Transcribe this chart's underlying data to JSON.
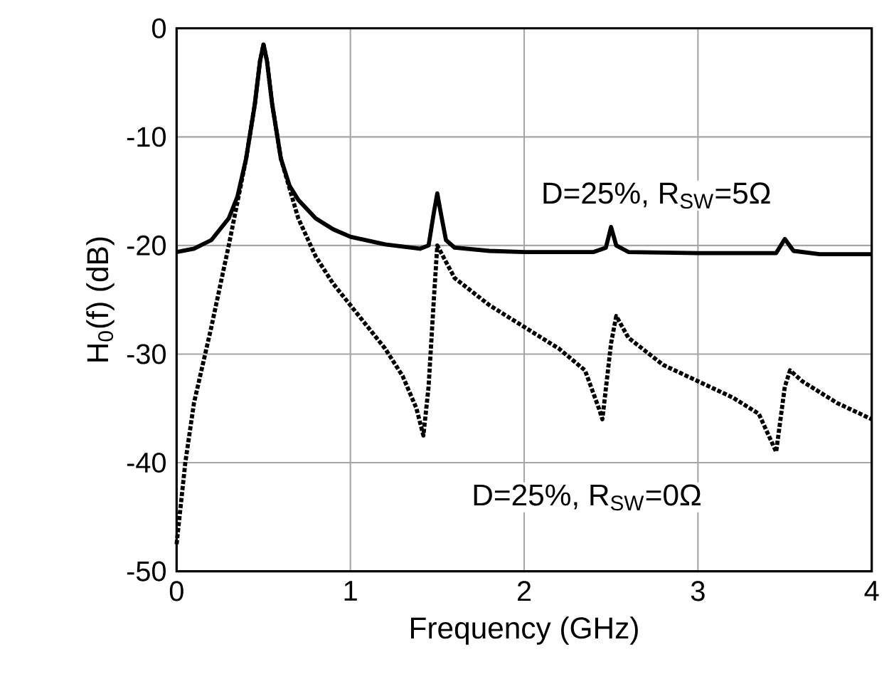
{
  "chart_data": {
    "type": "line",
    "xlabel": "Frequency (GHz)",
    "ylabel": "H$_{0}$(f) (dB)",
    "xlim": [
      0,
      4
    ],
    "ylim": [
      -50,
      0
    ],
    "xticks": [
      0,
      1,
      2,
      3,
      4
    ],
    "yticks": [
      -50,
      -40,
      -30,
      -20,
      -10,
      0
    ],
    "grid": true,
    "series": [
      {
        "name": "D=25%, R$_{SW}$=5Ω",
        "color": "#000000",
        "line_style": "solid",
        "x": [
          0,
          0.1,
          0.2,
          0.3,
          0.35,
          0.4,
          0.45,
          0.48,
          0.5,
          0.52,
          0.55,
          0.6,
          0.65,
          0.7,
          0.8,
          0.9,
          1.0,
          1.2,
          1.4,
          1.45,
          1.48,
          1.5,
          1.52,
          1.55,
          1.6,
          1.8,
          2.0,
          2.4,
          2.47,
          2.5,
          2.53,
          2.6,
          3.0,
          3.45,
          3.5,
          3.55,
          3.7,
          4.0
        ],
        "values": [
          -20.6,
          -20.3,
          -19.5,
          -17.5,
          -15.5,
          -12,
          -7,
          -3,
          -1.5,
          -3,
          -7,
          -12,
          -14.5,
          -15.8,
          -17.5,
          -18.5,
          -19.2,
          -19.9,
          -20.3,
          -20,
          -17,
          -15.2,
          -17,
          -19.5,
          -20.2,
          -20.5,
          -20.6,
          -20.6,
          -20.2,
          -18.3,
          -20,
          -20.6,
          -20.7,
          -20.7,
          -19.4,
          -20.5,
          -20.8,
          -20.8
        ]
      },
      {
        "name": "D=25%, R$_{SW}$=0Ω",
        "color": "#000000",
        "line_style": "dotted",
        "x": [
          0,
          0.05,
          0.1,
          0.2,
          0.3,
          0.4,
          0.45,
          0.48,
          0.5,
          0.52,
          0.55,
          0.6,
          0.7,
          0.8,
          0.9,
          1.0,
          1.1,
          1.2,
          1.3,
          1.38,
          1.42,
          1.45,
          1.48,
          1.5,
          1.55,
          1.6,
          1.8,
          2.0,
          2.2,
          2.35,
          2.43,
          2.45,
          2.5,
          2.53,
          2.6,
          2.8,
          3.0,
          3.2,
          3.35,
          3.45,
          3.5,
          3.53,
          3.6,
          3.8,
          4.0
        ],
        "values": [
          -47.5,
          -40,
          -34.5,
          -27.5,
          -20,
          -12,
          -7,
          -3,
          -1.5,
          -3,
          -7,
          -12,
          -17.5,
          -21,
          -23.5,
          -25.5,
          -27.5,
          -29.5,
          -32,
          -35,
          -37.5,
          -33,
          -25,
          -20,
          -21.5,
          -23,
          -25.5,
          -27.5,
          -29.5,
          -31.5,
          -35,
          -36,
          -29,
          -26.5,
          -28.5,
          -31,
          -32.5,
          -34,
          -35.5,
          -39,
          -33,
          -31.5,
          -32.5,
          -34.5,
          -36
        ]
      }
    ]
  }
}
